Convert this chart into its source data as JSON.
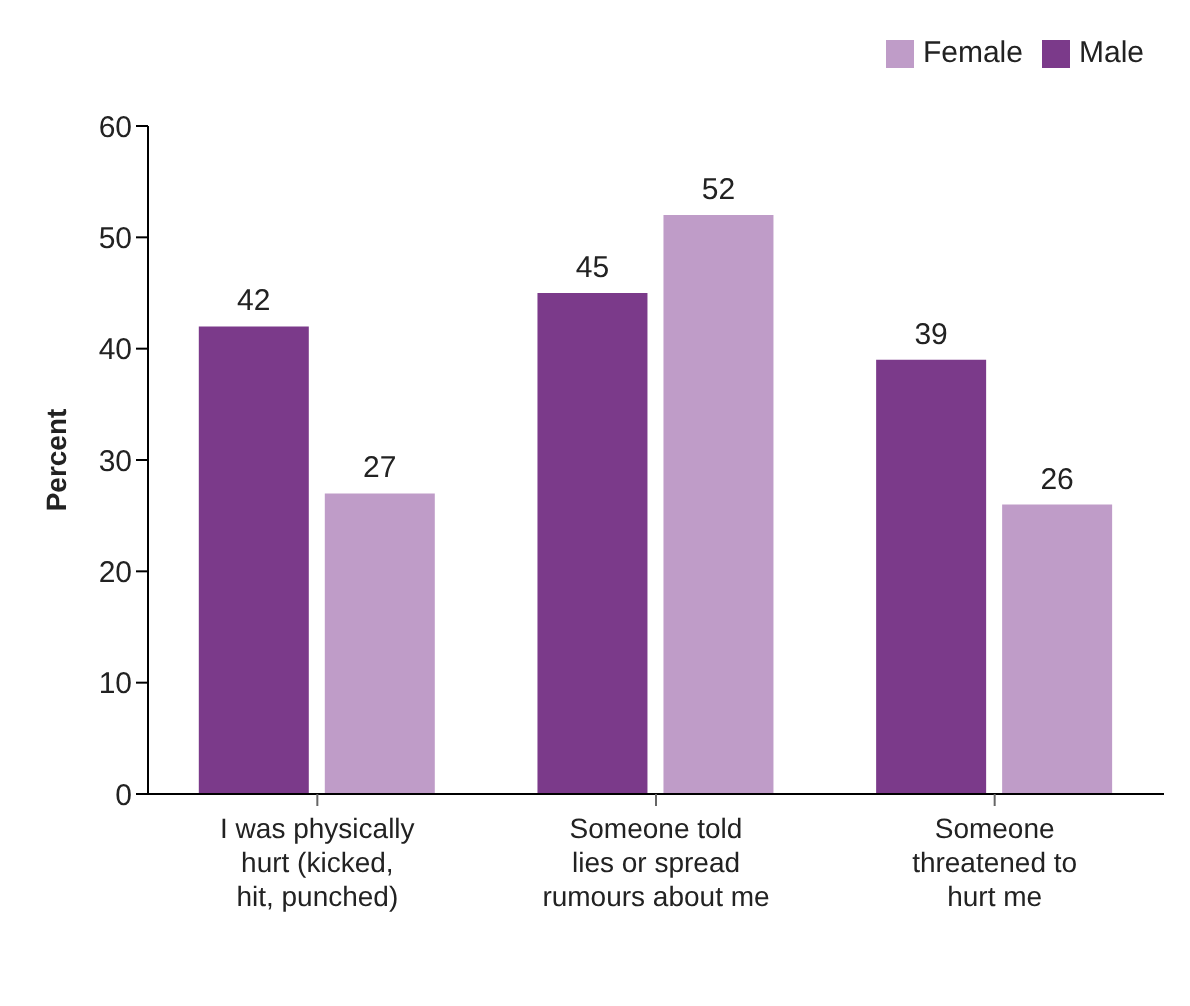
{
  "chart_data": {
    "type": "bar",
    "ylabel": "Percent",
    "categories": [
      "I was physically hurt (kicked, hit, punched)",
      "Someone told lies or spread rumours about me",
      "Someone threatened to hurt me"
    ],
    "series": [
      {
        "name": "Male",
        "color": "#7b3a8a",
        "values": [
          42,
          45,
          39
        ]
      },
      {
        "name": "Female",
        "color": "#bf9cc8",
        "values": [
          27,
          52,
          26
        ]
      }
    ],
    "ylim": [
      0,
      60
    ],
    "yticks": [
      0,
      10,
      20,
      30,
      40,
      50,
      60
    ],
    "data_labels": true,
    "legend": "top right",
    "grid": false
  }
}
